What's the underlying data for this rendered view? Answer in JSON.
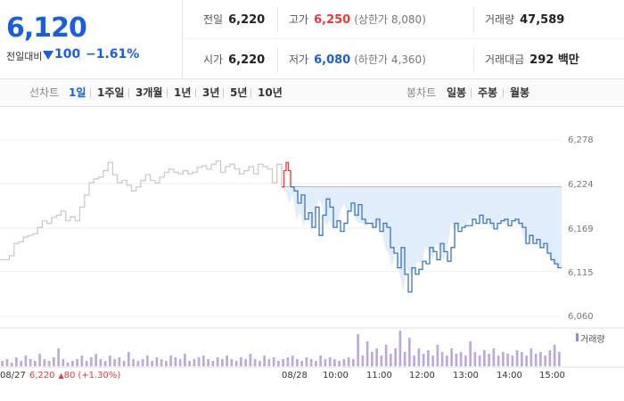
{
  "header": {
    "price": "6,120",
    "change_label": "전일대비",
    "change_icon": "down-triangle-icon",
    "change_amount": "100",
    "change_percent": "−1.61%",
    "colors": {
      "up": "#e63b3b",
      "down": "#1a5ee0"
    }
  },
  "stats": {
    "prev_close": {
      "label": "전일",
      "value": "6,220"
    },
    "high": {
      "label": "고가",
      "value": "6,250",
      "sub": "(상한가 8,080)"
    },
    "volume": {
      "label": "거래량",
      "value": "47,589"
    },
    "open": {
      "label": "시가",
      "value": "6,220"
    },
    "low": {
      "label": "저가",
      "value": "6,080",
      "sub": "(하한가 4,360)"
    },
    "trade_value": {
      "label": "거래대금",
      "value": "292 백만"
    }
  },
  "tabs": {
    "line_label": "선차트",
    "line_items": [
      "1일",
      "1주일",
      "3개월",
      "1년",
      "3년",
      "5년",
      "10년"
    ],
    "line_active": "1일",
    "candle_label": "봉차트",
    "candle_items": [
      "일봉",
      "주봉",
      "월봉"
    ]
  },
  "chart_data": {
    "type": "line",
    "title": "",
    "xlabel": "",
    "ylabel": "",
    "y_ticks": [
      "6,278",
      "6,224",
      "6,169",
      "6,115",
      "6,060"
    ],
    "ylim": [
      6060,
      6278
    ],
    "reference_price": 6220,
    "x_ticks": [
      "08/28",
      "10:00",
      "11:00",
      "12:00",
      "13:00",
      "14:00",
      "15:00"
    ],
    "volume_legend": "거래량",
    "prev_session": {
      "date": "08/27",
      "close": "6,220",
      "change_arrow": "▲",
      "change": "80",
      "change_percent": "(+1.30%)",
      "values": [
        6130,
        6130,
        6135,
        6150,
        6152,
        6158,
        6160,
        6162,
        6170,
        6178,
        6175,
        6182,
        6185,
        6190,
        6178,
        6183,
        6178,
        6195,
        6210,
        6225,
        6230,
        6232,
        6240,
        6250,
        6235,
        6225,
        6228,
        6222,
        6215,
        6220,
        6228,
        6235,
        6228,
        6225,
        6232,
        6238,
        6242,
        6238,
        6236,
        6240,
        6236,
        6238,
        6244,
        6246,
        6242,
        6248,
        6252,
        6238,
        6245,
        6248,
        6242,
        6236,
        6240,
        6245,
        6236,
        6248,
        6245,
        6242,
        6225,
        6248,
        6222
      ]
    },
    "series": [
      {
        "values": [
          6220,
          6215,
          6200,
          6210,
          6180,
          6188,
          6170,
          6195,
          6160,
          6185,
          6205,
          6195,
          6170,
          6178,
          6165,
          6175,
          6190,
          6200,
          6185,
          6198,
          6180,
          6175,
          6175,
          6170,
          6180,
          6165,
          6175,
          6170,
          6145,
          6138,
          6120,
          6145,
          6112,
          6090,
          6120,
          6112,
          6118,
          6128,
          6125,
          6145,
          6140,
          6130,
          6150,
          6140,
          6128,
          6145,
          6175,
          6165,
          6170,
          6172,
          6172,
          6180,
          6175,
          6185,
          6175,
          6180,
          6175,
          6168,
          6175,
          6178,
          6180,
          6172,
          6178,
          6180,
          6175,
          6170,
          6150,
          6160,
          6150,
          6155,
          6145,
          6150,
          6138,
          6130,
          6125,
          6120,
          6120
        ]
      }
    ],
    "volume": [
      0.15,
      0.2,
      0.1,
      0.25,
      0.15,
      0.3,
      0.2,
      0.15,
      0.35,
      0.2,
      0.15,
      0.25,
      0.5,
      0.2,
      0.1,
      0.15,
      0.2,
      0.3,
      0.15,
      0.25,
      0.35,
      0.2,
      0.15,
      0.3,
      0.2,
      0.25,
      0.15,
      0.4,
      0.2,
      0.15,
      0.2,
      0.3,
      0.15,
      0.25,
      0.2,
      0.15,
      0.3,
      0.25,
      0.2,
      0.35,
      0.15,
      0.2,
      0.25,
      0.3,
      0.2,
      0.15,
      0.25,
      0.2,
      0.3,
      0.2,
      0.15,
      0.25,
      0.2,
      0.35,
      0.2,
      0.15,
      0.3,
      0.2,
      0.25,
      0.15,
      0.2,
      0.25,
      0.3,
      0.2,
      0.15,
      0.25,
      0.2,
      0.15,
      0.3,
      0.2,
      0.25,
      0.2,
      0.15,
      0.2,
      0.25,
      0.2,
      0.9,
      0.3,
      0.7,
      0.4,
      0.5,
      0.3,
      0.6,
      0.35,
      0.5,
      1.0,
      0.4,
      0.8,
      0.3,
      0.5,
      0.35,
      0.45,
      0.3,
      0.6,
      0.4,
      0.3,
      0.5,
      0.35,
      0.4,
      0.3,
      0.7,
      0.4,
      0.3,
      0.45,
      0.35,
      0.5,
      0.3,
      0.4,
      0.35,
      0.3,
      0.45,
      0.4,
      0.3,
      0.5,
      0.35,
      0.4,
      0.3,
      0.45,
      0.6,
      0.4
    ]
  }
}
